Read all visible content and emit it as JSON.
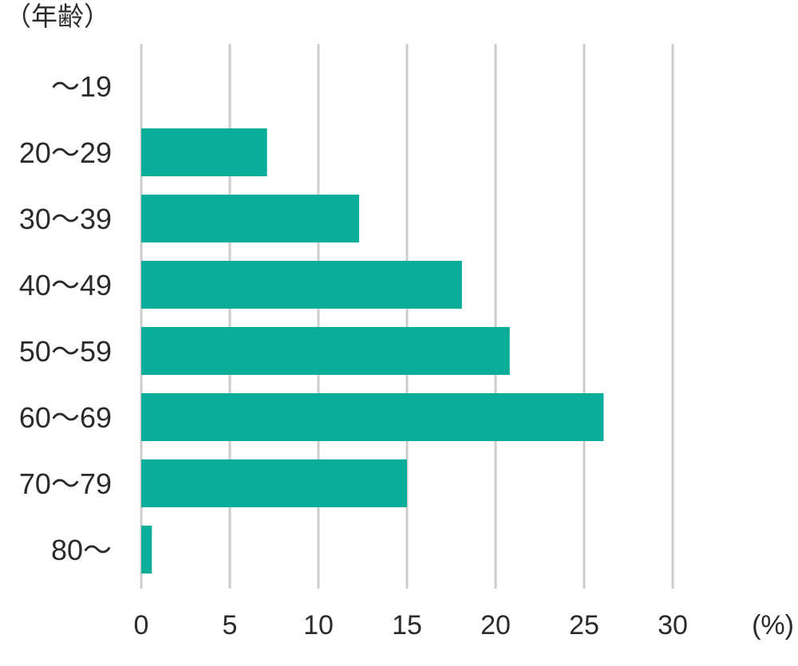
{
  "chart_data": {
    "type": "bar",
    "orientation": "horizontal",
    "ylabel": "（年齢）",
    "xunit": "(%)",
    "categories": [
      "～19",
      "20～29",
      "30～39",
      "40～49",
      "50～59",
      "60～69",
      "70～79",
      "80～"
    ],
    "values": [
      0,
      7.1,
      12.3,
      18.1,
      20.8,
      26.1,
      15.0,
      0.6
    ],
    "xlim": [
      0,
      30
    ],
    "xticks": [
      "0",
      "5",
      "10",
      "15",
      "20",
      "25",
      "30"
    ],
    "grid": "vertical",
    "colors": {
      "bar": "#09ad99",
      "grid": "#cccccc",
      "text": "#2b2b2b"
    }
  }
}
